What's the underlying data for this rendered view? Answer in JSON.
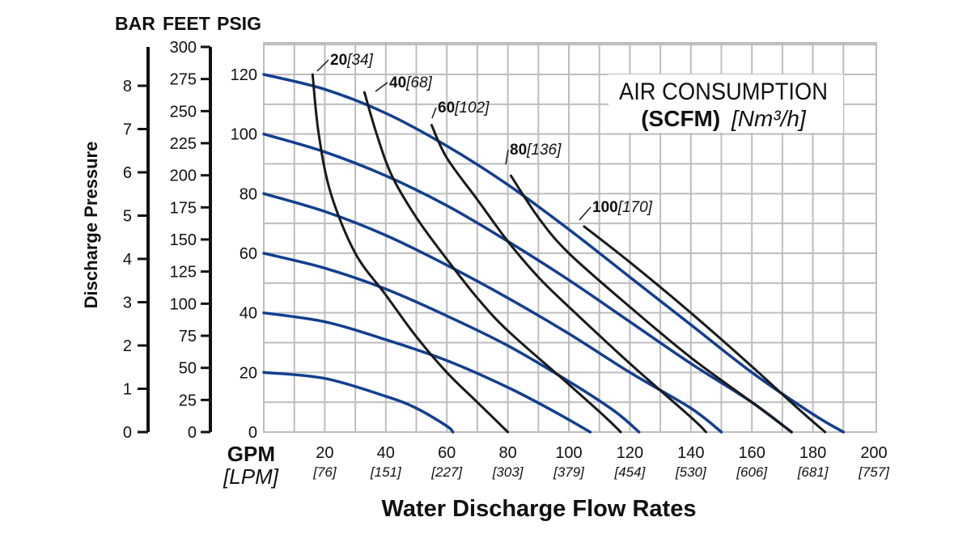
{
  "chart_data": {
    "type": "line",
    "title_line1": "AIR CONSUMPTION",
    "title_line2_bold": "(SCFM)",
    "title_line2_italic": "[Nm³/h]",
    "xlabel": "Water Discharge Flow Rates",
    "x_unit": "GPM",
    "x_unit_alt": "[LPM]",
    "ylabel": "Discharge Pressure",
    "axis_headers": [
      "BAR",
      "FEET",
      "PSIG"
    ],
    "xlim": [
      0,
      200
    ],
    "ylim_psig": [
      0,
      120
    ],
    "x_ticks": [
      {
        "value": 20,
        "label": "20",
        "alt": "[76]"
      },
      {
        "value": 40,
        "label": "40",
        "alt": "[151]"
      },
      {
        "value": 60,
        "label": "60",
        "alt": "[227]"
      },
      {
        "value": 80,
        "label": "80",
        "alt": "[303]"
      },
      {
        "value": 100,
        "label": "100",
        "alt": "[379]"
      },
      {
        "value": 120,
        "label": "120",
        "alt": "[454]"
      },
      {
        "value": 140,
        "label": "140",
        "alt": "[530]"
      },
      {
        "value": 160,
        "label": "160",
        "alt": "[606]"
      },
      {
        "value": 180,
        "label": "180",
        "alt": "[681]"
      },
      {
        "value": 200,
        "label": "200",
        "alt": "[757]"
      }
    ],
    "psig_ticks": [
      "0",
      "20",
      "40",
      "60",
      "80",
      "100",
      "120"
    ],
    "feet_ticks": [
      "0",
      "25",
      "50",
      "75",
      "100",
      "125",
      "150",
      "175",
      "200",
      "225",
      "250",
      "275",
      "300"
    ],
    "bar_ticks": [
      "0",
      "1",
      "2",
      "3",
      "4",
      "5",
      "6",
      "7",
      "8"
    ],
    "grid": true,
    "pressure_curves": [
      {
        "points": [
          [
            0,
            120
          ],
          [
            20,
            115
          ],
          [
            40,
            107
          ],
          [
            60,
            96
          ],
          [
            80,
            83
          ],
          [
            100,
            68
          ],
          [
            120,
            52
          ],
          [
            140,
            36
          ],
          [
            160,
            20
          ],
          [
            180,
            6
          ],
          [
            190,
            0
          ]
        ]
      },
      {
        "points": [
          [
            0,
            100
          ],
          [
            20,
            94
          ],
          [
            40,
            86
          ],
          [
            60,
            76
          ],
          [
            80,
            64
          ],
          [
            100,
            51
          ],
          [
            120,
            37
          ],
          [
            140,
            23
          ],
          [
            160,
            10
          ],
          [
            173,
            0
          ]
        ]
      },
      {
        "points": [
          [
            0,
            80
          ],
          [
            20,
            74
          ],
          [
            40,
            66
          ],
          [
            60,
            56
          ],
          [
            80,
            45
          ],
          [
            100,
            33
          ],
          [
            120,
            20
          ],
          [
            140,
            8
          ],
          [
            150,
            0
          ]
        ]
      },
      {
        "points": [
          [
            0,
            60
          ],
          [
            20,
            55
          ],
          [
            40,
            48
          ],
          [
            60,
            39
          ],
          [
            80,
            29
          ],
          [
            100,
            17
          ],
          [
            115,
            7
          ],
          [
            123,
            0
          ]
        ]
      },
      {
        "points": [
          [
            0,
            40
          ],
          [
            20,
            37
          ],
          [
            40,
            31
          ],
          [
            60,
            24
          ],
          [
            80,
            15
          ],
          [
            95,
            7
          ],
          [
            107,
            0
          ]
        ]
      },
      {
        "points": [
          [
            0,
            20
          ],
          [
            20,
            18
          ],
          [
            40,
            12
          ],
          [
            50,
            8
          ],
          [
            60,
            2
          ],
          [
            62,
            0
          ]
        ]
      }
    ],
    "air_curves": [
      {
        "label": "20",
        "alt": "[34]",
        "points": [
          [
            16,
            120
          ],
          [
            18,
            100
          ],
          [
            22,
            80
          ],
          [
            30,
            60
          ],
          [
            40,
            46
          ],
          [
            50,
            32
          ],
          [
            60,
            20
          ],
          [
            70,
            10
          ],
          [
            80,
            0
          ]
        ]
      },
      {
        "label": "40",
        "alt": "[68]",
        "points": [
          [
            33,
            114
          ],
          [
            37,
            100
          ],
          [
            42,
            86
          ],
          [
            50,
            72
          ],
          [
            60,
            58
          ],
          [
            70,
            45
          ],
          [
            80,
            34
          ],
          [
            100,
            16
          ],
          [
            112,
            5
          ],
          [
            117,
            0
          ]
        ]
      },
      {
        "label": "60",
        "alt": "[102]",
        "points": [
          [
            55,
            103
          ],
          [
            60,
            92
          ],
          [
            70,
            78
          ],
          [
            80,
            64
          ],
          [
            90,
            52
          ],
          [
            100,
            42
          ],
          [
            120,
            23
          ],
          [
            140,
            5
          ],
          [
            145,
            0
          ]
        ]
      },
      {
        "label": "80",
        "alt": "[136]",
        "points": [
          [
            81,
            86
          ],
          [
            90,
            72
          ],
          [
            100,
            60
          ],
          [
            120,
            42
          ],
          [
            140,
            25
          ],
          [
            160,
            10
          ],
          [
            173,
            0
          ]
        ]
      },
      {
        "label": "100",
        "alt": "[170]",
        "points": [
          [
            105,
            69
          ],
          [
            120,
            57
          ],
          [
            140,
            40
          ],
          [
            160,
            22
          ],
          [
            175,
            8
          ],
          [
            184,
            0
          ]
        ]
      }
    ]
  }
}
